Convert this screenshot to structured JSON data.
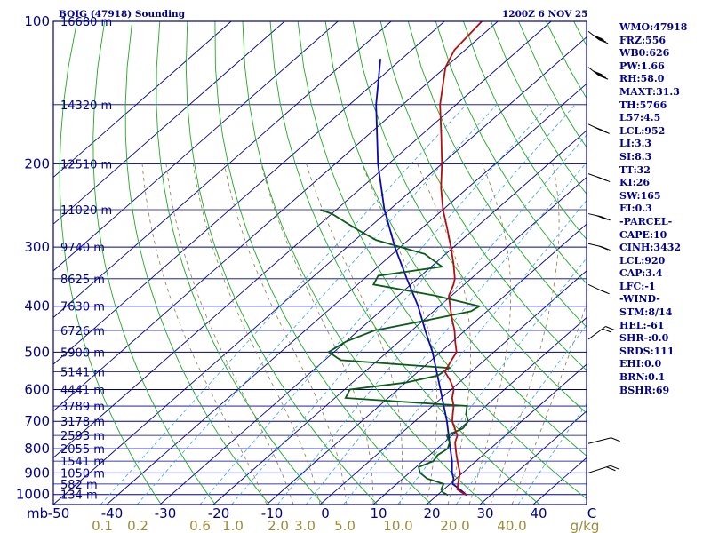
{
  "header": {
    "left_title": "BOIG (47918) Sounding",
    "right_title": "1200Z  6 NOV 25"
  },
  "stats": [
    "WMO:47918",
    "FRZ:556",
    "WB0:626",
    "PW:1.66",
    "RH:58.0",
    "MAXT:31.3",
    "TH:5766",
    "L57:4.5",
    "LCL:952",
    "LI:3.3",
    "SI:8.3",
    "TT:32",
    "KI:26",
    "SW:165",
    "EI:0.3",
    "-PARCEL-",
    "CAPE:10",
    "CINH:3432",
    "LCL:920",
    "CAP:3.4",
    "LFC:-1",
    "-WIND-",
    "STM:8/14",
    "HEL:-61",
    "SHR-:0.0",
    "SRDS:111",
    "EHI:0.0",
    "BRN:0.1",
    "BSHR:69"
  ],
  "chart_data": {
    "type": "skew-t",
    "pressure_unit_label": "mb",
    "pressure_levels": [
      100,
      200,
      300,
      400,
      500,
      600,
      700,
      800,
      900,
      1000
    ],
    "temperature_ticks": [
      "-50",
      "-40",
      "-30",
      "-20",
      "-10",
      "0",
      "10",
      "20",
      "30",
      "40",
      "C"
    ],
    "temperature_tick_values": [
      -50,
      -40,
      -30,
      -20,
      -10,
      0,
      10,
      20,
      30,
      40
    ],
    "mixing_ratio_ticks": [
      "0.1",
      "0.2",
      "0.6",
      "1.0",
      "2.0",
      "3.0",
      "5.0",
      "10.0",
      "20.0",
      "40.0",
      "g/kg"
    ],
    "mixing_ratio_values": [
      0.1,
      0.2,
      0.6,
      1.0,
      2.0,
      3.0,
      5.0,
      10.0,
      20.0,
      40.0
    ],
    "height_labels": [
      {
        "p": 100,
        "label": "16680 m"
      },
      {
        "p": 150,
        "label": "14320 m"
      },
      {
        "p": 200,
        "label": "12510 m"
      },
      {
        "p": 250,
        "label": "11020 m"
      },
      {
        "p": 300,
        "label": "9740 m"
      },
      {
        "p": 350,
        "label": "8625 m"
      },
      {
        "p": 400,
        "label": "7630 m"
      },
      {
        "p": 450,
        "label": "6726 m"
      },
      {
        "p": 500,
        "label": "5900 m"
      },
      {
        "p": 550,
        "label": "5141 m"
      },
      {
        "p": 600,
        "label": "4441 m"
      },
      {
        "p": 650,
        "label": "3789 m"
      },
      {
        "p": 700,
        "label": "3178 m"
      },
      {
        "p": 750,
        "label": "2593 m"
      },
      {
        "p": 800,
        "label": "2055 m"
      },
      {
        "p": 850,
        "label": "1541 m"
      },
      {
        "p": 900,
        "label": "1050 m"
      },
      {
        "p": 950,
        "label": "582 m"
      },
      {
        "p": 1000,
        "label": "134 m"
      }
    ],
    "temperature_profile": [
      [
        1003,
        25.5
      ],
      [
        990,
        24.0
      ],
      [
        975,
        22.5
      ],
      [
        950,
        21.5
      ],
      [
        925,
        20.5
      ],
      [
        900,
        19.5
      ],
      [
        875,
        18.0
      ],
      [
        850,
        16.5
      ],
      [
        825,
        15.0
      ],
      [
        800,
        13.5
      ],
      [
        775,
        12.0
      ],
      [
        750,
        11.0
      ],
      [
        725,
        9.0
      ],
      [
        700,
        7.0
      ],
      [
        675,
        5.5
      ],
      [
        650,
        4.0
      ],
      [
        625,
        2.0
      ],
      [
        600,
        0.5
      ],
      [
        575,
        -2.0
      ],
      [
        550,
        -5.0
      ],
      [
        525,
        -6.0
      ],
      [
        500,
        -7.0
      ],
      [
        475,
        -9.5
      ],
      [
        450,
        -12.0
      ],
      [
        425,
        -15.0
      ],
      [
        400,
        -18.0
      ],
      [
        380,
        -20.5
      ],
      [
        360,
        -22.0
      ],
      [
        350,
        -23.0
      ],
      [
        325,
        -26.5
      ],
      [
        300,
        -30.5
      ],
      [
        275,
        -35.0
      ],
      [
        250,
        -40.0
      ],
      [
        225,
        -45.0
      ],
      [
        200,
        -50.0
      ],
      [
        175,
        -56.0
      ],
      [
        150,
        -63.0
      ],
      [
        125,
        -70.0
      ],
      [
        115,
        -72.0
      ],
      [
        100,
        -73.0
      ]
    ],
    "dewpoint_profile": [
      [
        1003,
        22.0
      ],
      [
        990,
        20.5
      ],
      [
        975,
        19.5
      ],
      [
        950,
        18.8
      ],
      [
        925,
        14.5
      ],
      [
        900,
        12.0
      ],
      [
        875,
        10.5
      ],
      [
        850,
        12.0
      ],
      [
        825,
        11.5
      ],
      [
        800,
        12.0
      ],
      [
        775,
        11.0
      ],
      [
        750,
        9.0
      ],
      [
        725,
        10.5
      ],
      [
        700,
        10.0
      ],
      [
        675,
        8.0
      ],
      [
        650,
        6.5
      ],
      [
        625,
        -18.0
      ],
      [
        600,
        -19.0
      ],
      [
        580,
        -10.0
      ],
      [
        560,
        -5.5
      ],
      [
        540,
        -5.0
      ],
      [
        520,
        -27.0
      ],
      [
        500,
        -31.0
      ],
      [
        475,
        -30.0
      ],
      [
        450,
        -27.0
      ],
      [
        430,
        -20.0
      ],
      [
        410,
        -13.0
      ],
      [
        400,
        -12.5
      ],
      [
        380,
        -23.0
      ],
      [
        360,
        -37.0
      ],
      [
        345,
        -38.0
      ],
      [
        330,
        -28.0
      ],
      [
        310,
        -34.0
      ],
      [
        290,
        -46.0
      ],
      [
        275,
        -52.0
      ],
      [
        255,
        -60.0
      ],
      [
        250,
        -63.0
      ]
    ],
    "parcel_profile": [
      [
        1003,
        25.5
      ],
      [
        975,
        23.0
      ],
      [
        950,
        20.5
      ],
      [
        925,
        19.5
      ],
      [
        900,
        18.0
      ],
      [
        850,
        15.5
      ],
      [
        800,
        12.5
      ],
      [
        700,
        6.0
      ],
      [
        600,
        -2.0
      ],
      [
        500,
        -11.5
      ],
      [
        450,
        -17.5
      ],
      [
        400,
        -24.0
      ],
      [
        350,
        -32.0
      ],
      [
        300,
        -41.0
      ],
      [
        250,
        -51.0
      ],
      [
        200,
        -62.0
      ],
      [
        150,
        -75.0
      ],
      [
        120,
        -84.0
      ]
    ],
    "wind_barbs": [
      {
        "p": 105,
        "dir": 240,
        "speed": 45
      },
      {
        "p": 125,
        "dir": 240,
        "speed": 40
      },
      {
        "p": 165,
        "dir": 250,
        "speed": 35
      },
      {
        "p": 210,
        "dir": 255,
        "speed": 30
      },
      {
        "p": 255,
        "dir": 260,
        "speed": 25
      },
      {
        "p": 295,
        "dir": 260,
        "speed": 20
      },
      {
        "p": 360,
        "dir": 250,
        "speed": 20
      },
      {
        "p": 470,
        "dir": 40,
        "speed": 15
      },
      {
        "p": 780,
        "dir": 70,
        "speed": 10
      },
      {
        "p": 900,
        "dir": 65,
        "speed": 15
      }
    ]
  }
}
